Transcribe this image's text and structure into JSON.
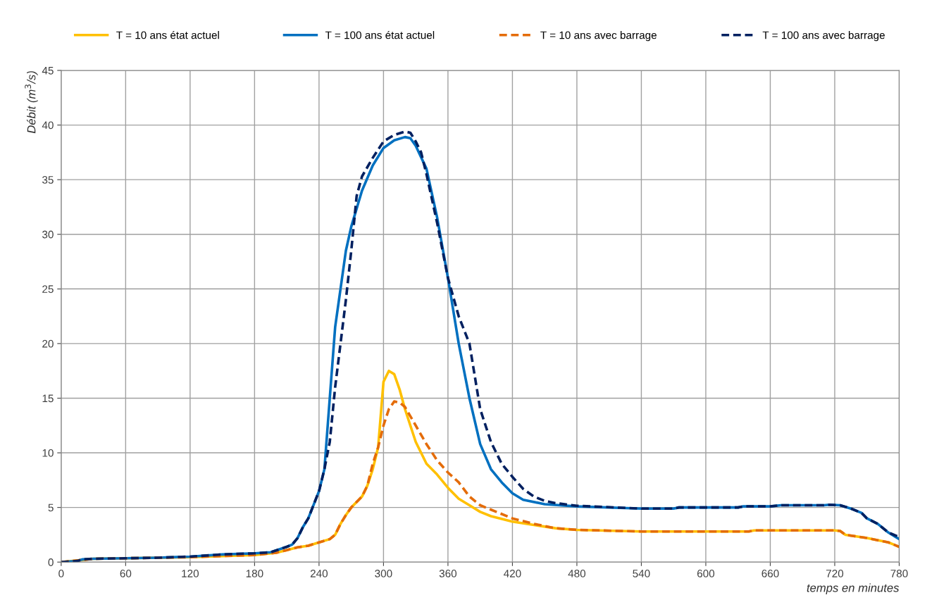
{
  "chart_data": {
    "type": "line",
    "xlabel": "temps en minutes",
    "ylabel": "Débit (m$^{3}$/s)",
    "xlim": [
      0,
      780
    ],
    "ylim": [
      0,
      45
    ],
    "xticks": [
      0,
      60,
      120,
      180,
      240,
      300,
      360,
      420,
      480,
      540,
      600,
      660,
      720,
      780
    ],
    "yticks": [
      0,
      5,
      10,
      15,
      20,
      25,
      30,
      35,
      40,
      45
    ],
    "grid": true,
    "legend": "top",
    "marker": "none",
    "series": [
      {
        "name": "T = 10 ans état actuel",
        "color": "#ffc000",
        "line_style": "solid",
        "x": [
          0,
          20,
          30,
          60,
          120,
          180,
          200,
          210,
          220,
          230,
          240,
          250,
          255,
          260,
          265,
          270,
          280,
          285,
          290,
          295,
          300,
          305,
          310,
          315,
          320,
          330,
          340,
          350,
          360,
          370,
          380,
          390,
          400,
          420,
          440,
          460,
          480,
          540,
          640,
          645,
          720,
          725,
          730,
          750,
          770,
          780
        ],
        "values": [
          0,
          0.2,
          0.3,
          0.35,
          0.45,
          0.65,
          0.85,
          1.1,
          1.35,
          1.5,
          1.8,
          2.1,
          2.5,
          3.5,
          4.3,
          5,
          6,
          7,
          8.5,
          10.5,
          16.5,
          17.5,
          17.2,
          15.8,
          14,
          11,
          9,
          8,
          6.8,
          5.8,
          5.2,
          4.6,
          4.2,
          3.7,
          3.4,
          3.1,
          2.95,
          2.8,
          2.8,
          2.9,
          2.9,
          2.85,
          2.5,
          2.2,
          1.8,
          1.4
        ]
      },
      {
        "name": "T = 100 ans état actuel",
        "color": "#0070c0",
        "line_style": "solid",
        "x": [
          0,
          15,
          20,
          30,
          60,
          90,
          120,
          150,
          180,
          195,
          210,
          215,
          220,
          225,
          230,
          240,
          245,
          250,
          255,
          260,
          265,
          270,
          280,
          290,
          300,
          310,
          320,
          325,
          330,
          340,
          350,
          360,
          370,
          380,
          390,
          400,
          410,
          420,
          430,
          450,
          480,
          540,
          570,
          575,
          630,
          635,
          660,
          670,
          710,
          715,
          725,
          735,
          745,
          750,
          760,
          770,
          780
        ],
        "values": [
          0,
          0.1,
          0.25,
          0.3,
          0.35,
          0.4,
          0.5,
          0.7,
          0.8,
          0.9,
          1.4,
          1.6,
          2.2,
          3.2,
          4,
          6.5,
          8.5,
          15,
          21.5,
          25,
          28.5,
          30.7,
          34,
          36.3,
          37.9,
          38.6,
          38.9,
          38.8,
          38.1,
          36,
          31.5,
          26,
          20,
          15,
          10.8,
          8.5,
          7.3,
          6.3,
          5.7,
          5.3,
          5.1,
          4.9,
          4.9,
          5,
          5,
          5.1,
          5.1,
          5.2,
          5.2,
          5.25,
          5.2,
          4.9,
          4.5,
          4,
          3.5,
          2.7,
          2.1
        ]
      },
      {
        "name": "T = 10 ans avec barrage",
        "color": "#e46c0a",
        "line_style": "dashed",
        "x": [
          0,
          20,
          30,
          60,
          120,
          180,
          200,
          210,
          220,
          230,
          240,
          250,
          255,
          260,
          265,
          270,
          280,
          285,
          290,
          295,
          300,
          305,
          310,
          315,
          320,
          330,
          340,
          350,
          360,
          370,
          380,
          390,
          400,
          420,
          440,
          460,
          480,
          540,
          640,
          645,
          720,
          725,
          730,
          750,
          770,
          780
        ],
        "values": [
          0,
          0.2,
          0.3,
          0.35,
          0.45,
          0.65,
          0.85,
          1.1,
          1.35,
          1.5,
          1.8,
          2.1,
          2.5,
          3.5,
          4.3,
          5,
          6,
          7,
          9,
          10.5,
          12.5,
          14,
          14.7,
          14.6,
          14.2,
          12.5,
          10.8,
          9.3,
          8.2,
          7.3,
          6,
          5.2,
          4.8,
          4,
          3.5,
          3.1,
          2.95,
          2.8,
          2.8,
          2.9,
          2.9,
          2.85,
          2.5,
          2.2,
          1.8,
          1.4
        ]
      },
      {
        "name": "T = 100 ans avec barrage",
        "color": "#002060",
        "line_style": "dashed",
        "x": [
          0,
          15,
          20,
          30,
          60,
          90,
          120,
          150,
          180,
          195,
          210,
          215,
          220,
          225,
          230,
          240,
          245,
          250,
          255,
          260,
          265,
          270,
          275,
          280,
          290,
          300,
          310,
          320,
          325,
          330,
          335,
          340,
          350,
          360,
          370,
          380,
          390,
          400,
          410,
          420,
          430,
          440,
          450,
          460,
          480,
          540,
          570,
          575,
          630,
          635,
          660,
          670,
          710,
          715,
          725,
          735,
          745,
          750,
          760,
          770,
          780
        ],
        "values": [
          0,
          0.1,
          0.25,
          0.3,
          0.35,
          0.4,
          0.5,
          0.7,
          0.8,
          0.9,
          1.4,
          1.6,
          2.2,
          3.2,
          4,
          6.5,
          8.5,
          11,
          16,
          20,
          24,
          28.5,
          33.5,
          35.3,
          37,
          38.5,
          39.1,
          39.4,
          39.3,
          38.5,
          37.5,
          35.5,
          31,
          26,
          22.5,
          20,
          14,
          11,
          9,
          7.8,
          6.7,
          6,
          5.6,
          5.4,
          5.15,
          4.9,
          4.9,
          5,
          5,
          5.1,
          5.1,
          5.2,
          5.2,
          5.25,
          5.2,
          4.9,
          4.5,
          4,
          3.5,
          2.7,
          2.3
        ]
      }
    ]
  }
}
